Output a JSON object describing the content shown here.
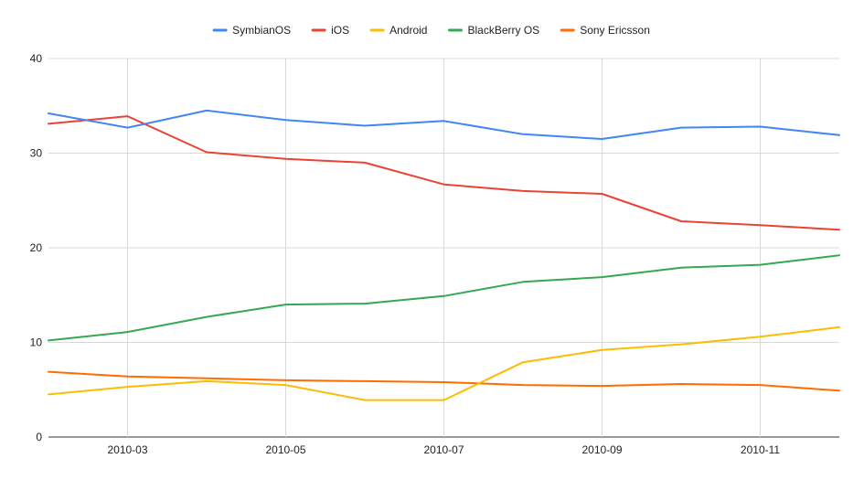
{
  "chart_data": {
    "type": "line",
    "title": "",
    "xlabel": "",
    "ylabel": "",
    "x": [
      "2010-02",
      "2010-03",
      "2010-04",
      "2010-05",
      "2010-06",
      "2010-07",
      "2010-08",
      "2010-09",
      "2010-10",
      "2010-11",
      "2010-12"
    ],
    "x_tick_labels": [
      "2010-03",
      "2010-05",
      "2010-07",
      "2010-09",
      "2010-11"
    ],
    "ylim": [
      0,
      40
    ],
    "y_ticks": [
      0,
      10,
      20,
      30,
      40
    ],
    "grid": true,
    "legend_position": "top-center",
    "series": [
      {
        "name": "SymbianOS",
        "color": "#4285F4",
        "values": [
          34.2,
          32.7,
          34.5,
          33.5,
          32.9,
          33.4,
          32.0,
          31.5,
          32.7,
          32.8,
          31.9
        ]
      },
      {
        "name": "iOS",
        "color": "#EA4335",
        "values": [
          33.1,
          33.9,
          30.1,
          29.4,
          29.0,
          26.7,
          26.0,
          25.7,
          22.8,
          22.4,
          21.9
        ]
      },
      {
        "name": "Android",
        "color": "#FBBC04",
        "values": [
          4.5,
          5.3,
          5.9,
          5.5,
          3.9,
          3.9,
          7.9,
          9.2,
          9.8,
          10.6,
          11.6
        ]
      },
      {
        "name": "BlackBerry OS",
        "color": "#34A853",
        "values": [
          10.2,
          11.1,
          12.7,
          14.0,
          14.1,
          14.9,
          16.4,
          16.9,
          17.9,
          18.2,
          19.2
        ]
      },
      {
        "name": "Sony Ericsson",
        "color": "#FF6D01",
        "values": [
          6.9,
          6.4,
          6.2,
          6.0,
          5.9,
          5.8,
          5.5,
          5.4,
          5.6,
          5.5,
          4.9
        ]
      }
    ]
  }
}
